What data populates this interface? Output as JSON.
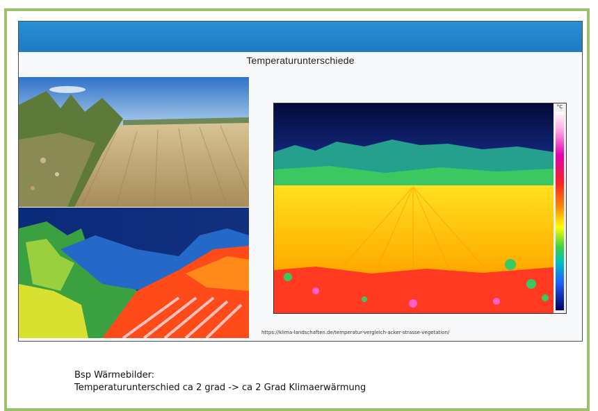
{
  "slide": {
    "title": "Temperaturunterschiede",
    "source_url": "https://klima-landschaften.de/temperatur-vergleich-acker-strasse-vegetation/",
    "scale_unit": "°C"
  },
  "caption": {
    "line1": "Bsp Wärmebilder:",
    "line2": "Temperaturunterschied ca 2 grad -> ca 2 Grad Klimaerwärmung"
  },
  "colors": {
    "frame_border": "#9dc06c",
    "banner": "#2088cf"
  }
}
